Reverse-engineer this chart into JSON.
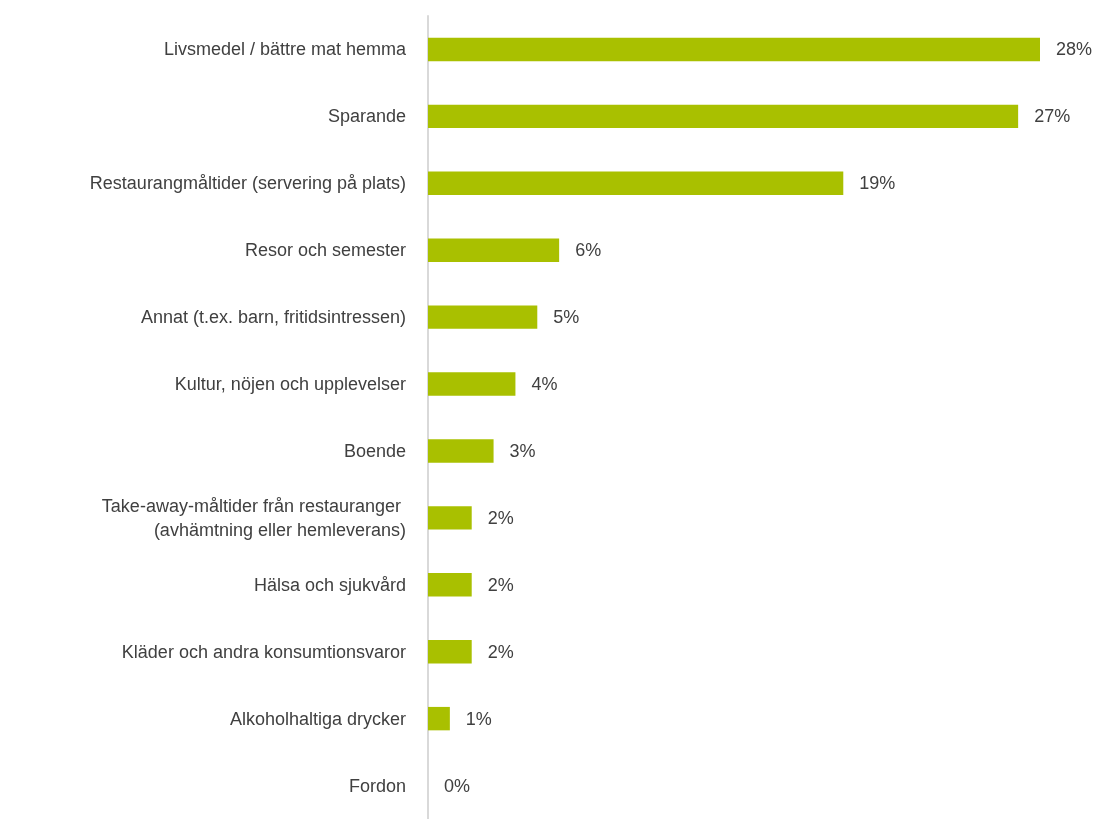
{
  "chart_data": {
    "type": "bar",
    "orientation": "horizontal",
    "categories": [
      "Livsmedel / bättre mat hemma",
      "Sparande",
      "Restaurangmåltider (servering på plats)",
      "Resor och semester",
      "Annat (t.ex. barn, fritidsintressen)",
      "Kultur, nöjen och upplevelser",
      "Boende",
      "Take-away-måltider från restauranger (avhämtning eller hemleverans)",
      "Hälsa och sjukvård",
      "Kläder och andra konsumtionsvaror",
      "Alkoholhaltiga drycker",
      "Fordon"
    ],
    "values": [
      28,
      27,
      19,
      6,
      5,
      4,
      3,
      2,
      2,
      2,
      1,
      0
    ],
    "value_labels": [
      "28%",
      "27%",
      "19%",
      "6%",
      "5%",
      "4%",
      "3%",
      "2%",
      "2%",
      "2%",
      "1%",
      "0%"
    ],
    "color": "#a9c000"
  }
}
